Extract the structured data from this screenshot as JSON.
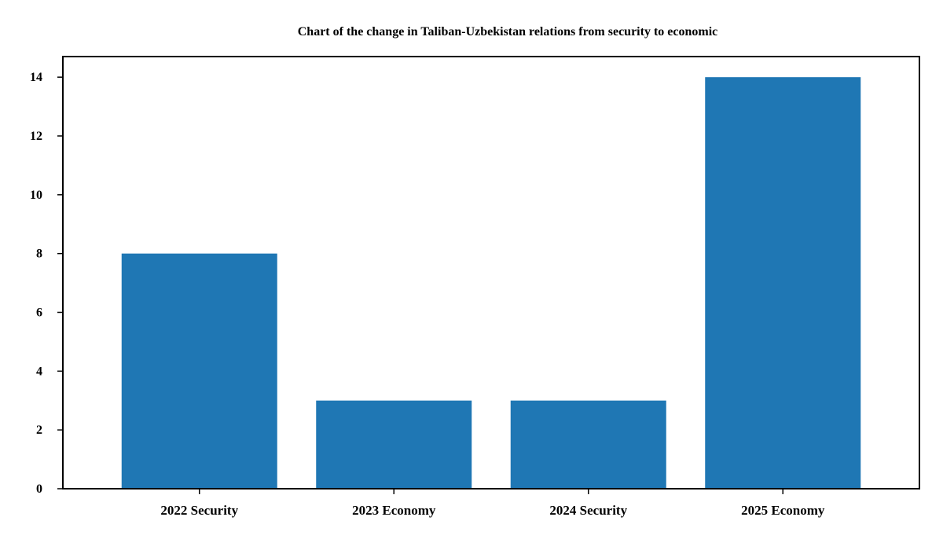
{
  "chart_data": {
    "type": "bar",
    "title": "Chart of the change in Taliban-Uzbekistan relations from security to economic",
    "xlabel": "",
    "ylabel": "",
    "categories": [
      "2022 Security",
      "2023 Economy",
      "2024 Security",
      "2025 Economy"
    ],
    "values": [
      8,
      3,
      3,
      14
    ],
    "ylim": [
      0,
      14.7
    ],
    "yticks": [
      0,
      2,
      4,
      6,
      8,
      10,
      12,
      14
    ],
    "grid": false,
    "legend": "none",
    "bar_color": "#1f77b4"
  }
}
